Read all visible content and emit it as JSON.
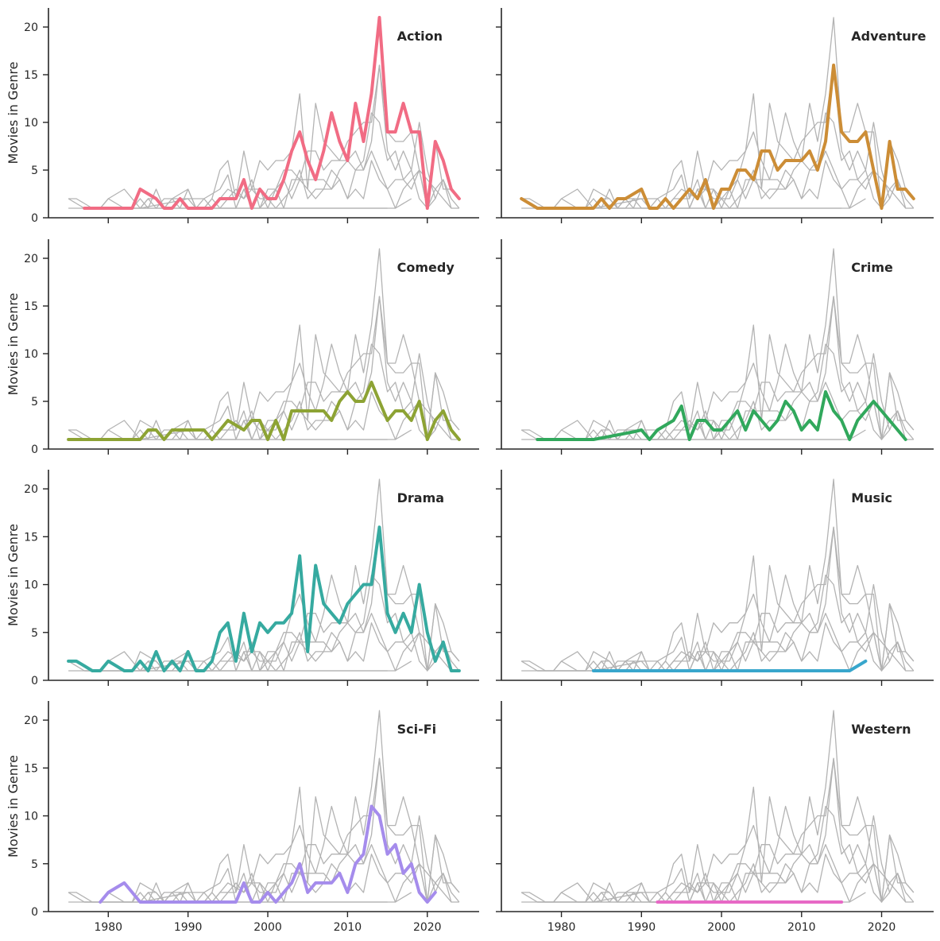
{
  "chart_data": {
    "type": "line",
    "layout": "small-multiples 4 rows x 2 cols, shared axes",
    "ylabel": "Movies in Genre",
    "xlim": [
      1972.5,
      2026.5
    ],
    "ylim": [
      0,
      22
    ],
    "xticks": [
      1980,
      1990,
      2000,
      2010,
      2020
    ],
    "yticks": [
      0,
      5,
      10,
      15,
      20
    ],
    "grid": false,
    "background_line_color": "#b3b3b3",
    "panels": [
      {
        "title": "Action",
        "color": "#f16c84",
        "x": [
          1977,
          1978,
          1979,
          1980,
          1981,
          1982,
          1983,
          1984,
          1985,
          1986,
          1987,
          1988,
          1989,
          1990,
          1991,
          1992,
          1993,
          1994,
          1995,
          1996,
          1997,
          1998,
          1999,
          2000,
          2001,
          2002,
          2003,
          2004,
          2005,
          2006,
          2007,
          2008,
          2009,
          2010,
          2011,
          2012,
          2013,
          2014,
          2015,
          2016,
          2017,
          2018,
          2019,
          2020,
          2021,
          2022,
          2023,
          2024
        ],
        "y": [
          1,
          1,
          1,
          1,
          1,
          1,
          1,
          3,
          2.5,
          2,
          1,
          1,
          2,
          1,
          1,
          1,
          1,
          2,
          2,
          2,
          4,
          1,
          3,
          2,
          2,
          4,
          7,
          9,
          6,
          4,
          7,
          11,
          8,
          6,
          12,
          8,
          13,
          21,
          9,
          9,
          12,
          9,
          9,
          1,
          8,
          6,
          3,
          2
        ]
      },
      {
        "title": "Adventure",
        "color": "#cc8d36",
        "x": [
          1975,
          1976,
          1977,
          1978,
          1979,
          1980,
          1981,
          1982,
          1983,
          1984,
          1985,
          1986,
          1987,
          1988,
          1989,
          1990,
          1991,
          1992,
          1993,
          1994,
          1995,
          1996,
          1997,
          1998,
          1999,
          2000,
          2001,
          2002,
          2003,
          2004,
          2005,
          2006,
          2007,
          2008,
          2009,
          2010,
          2011,
          2012,
          2013,
          2014,
          2015,
          2016,
          2017,
          2018,
          2019,
          2020,
          2021,
          2022,
          2023,
          2024
        ],
        "y": [
          2,
          1.5,
          1,
          1,
          1,
          1,
          1,
          1,
          1,
          1,
          2,
          1,
          2,
          2,
          2.5,
          3,
          1,
          1,
          2,
          1,
          2,
          3,
          2,
          4,
          1,
          3,
          3,
          5,
          5,
          4,
          7,
          7,
          5,
          6,
          6,
          6,
          7,
          5,
          8,
          16,
          9,
          8,
          8,
          9,
          5,
          1,
          8,
          3,
          3,
          2
        ]
      },
      {
        "title": "Comedy",
        "color": "#8da334",
        "x": [
          1975,
          1976,
          1977,
          1978,
          1979,
          1980,
          1981,
          1982,
          1983,
          1984,
          1985,
          1986,
          1987,
          1988,
          1989,
          1990,
          1991,
          1992,
          1993,
          1994,
          1995,
          1996,
          1997,
          1998,
          1999,
          2000,
          2001,
          2002,
          2003,
          2004,
          2005,
          2006,
          2007,
          2008,
          2009,
          2010,
          2011,
          2012,
          2013,
          2014,
          2015,
          2016,
          2017,
          2018,
          2019,
          2020,
          2021,
          2022,
          2023,
          2024
        ],
        "y": [
          1,
          1,
          1,
          1,
          1,
          1,
          1,
          1,
          1,
          1,
          2,
          2,
          1,
          2,
          2,
          2,
          2,
          2,
          1,
          2,
          3,
          2.5,
          2,
          3,
          3,
          1,
          3,
          1,
          4,
          4,
          4,
          4,
          4,
          3,
          5,
          6,
          5,
          5,
          7,
          5,
          3,
          4,
          4,
          3,
          5,
          1,
          3,
          4,
          2,
          1
        ]
      },
      {
        "title": "Crime",
        "color": "#31a85c",
        "x": [
          1977,
          1984,
          1989,
          1990,
          1991,
          1992,
          1993,
          1994,
          1995,
          1996,
          1997,
          1998,
          1999,
          2000,
          2001,
          2002,
          2003,
          2004,
          2005,
          2006,
          2007,
          2008,
          2009,
          2010,
          2011,
          2012,
          2013,
          2014,
          2015,
          2016,
          2017,
          2018,
          2019,
          2020,
          2021,
          2022,
          2023
        ],
        "y": [
          1,
          1,
          1.8,
          2,
          1,
          2,
          2.5,
          3,
          4.5,
          1,
          3,
          3,
          2,
          2,
          3,
          4,
          2,
          4,
          3,
          2,
          3,
          5,
          4,
          2,
          3,
          2,
          6,
          4,
          3,
          1,
          3,
          4,
          5,
          4,
          3,
          2,
          1
        ]
      },
      {
        "title": "Drama",
        "color": "#36aaa0",
        "x": [
          1975,
          1976,
          1977,
          1978,
          1979,
          1980,
          1981,
          1982,
          1983,
          1984,
          1985,
          1986,
          1987,
          1988,
          1989,
          1990,
          1991,
          1992,
          1993,
          1994,
          1995,
          1996,
          1997,
          1998,
          1999,
          2000,
          2001,
          2002,
          2003,
          2004,
          2005,
          2006,
          2007,
          2008,
          2009,
          2010,
          2011,
          2012,
          2013,
          2014,
          2015,
          2016,
          2017,
          2018,
          2019,
          2020,
          2021,
          2022,
          2023,
          2024
        ],
        "y": [
          2,
          2,
          1.5,
          1,
          1,
          2,
          1.5,
          1,
          1,
          2,
          1,
          3,
          1,
          2,
          1,
          3,
          1,
          1,
          2,
          5,
          6,
          2,
          7,
          3,
          6,
          5,
          6,
          6,
          7,
          13,
          3,
          12,
          8,
          7,
          6,
          8,
          9,
          10,
          10,
          16,
          7,
          5,
          7,
          5,
          10,
          5,
          2,
          4,
          1,
          1
        ]
      },
      {
        "title": "Music",
        "color": "#38a6cc",
        "x": [
          1984,
          2016,
          2018
        ],
        "y": [
          1,
          1,
          2
        ]
      },
      {
        "title": "Sci-Fi",
        "color": "#a58cec",
        "x": [
          1979,
          1980,
          1981,
          1982,
          1983,
          1984,
          1985,
          1986,
          1987,
          1988,
          1989,
          1990,
          1991,
          1992,
          1993,
          1994,
          1995,
          1996,
          1997,
          1998,
          1999,
          2000,
          2001,
          2002,
          2003,
          2004,
          2005,
          2006,
          2007,
          2008,
          2009,
          2010,
          2011,
          2012,
          2013,
          2014,
          2015,
          2016,
          2017,
          2018,
          2019,
          2020,
          2021
        ],
        "y": [
          1,
          2,
          2.5,
          3,
          2,
          1,
          1,
          1,
          1,
          1,
          1,
          1,
          1,
          1,
          1,
          1,
          1,
          1,
          3,
          1,
          1,
          2,
          1,
          2,
          3,
          5,
          2,
          3,
          3,
          3,
          4,
          2,
          5,
          6,
          11,
          10,
          6,
          7,
          4,
          5,
          2,
          1,
          2
        ]
      },
      {
        "title": "Western",
        "color": "#e769c6",
        "x": [
          1992,
          2015
        ],
        "y": [
          1,
          1
        ]
      }
    ]
  }
}
